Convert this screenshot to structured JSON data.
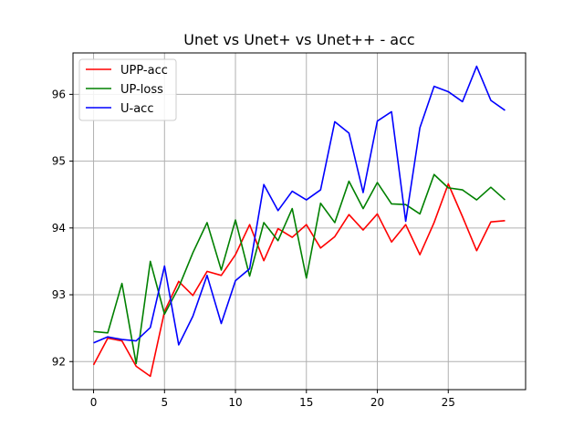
{
  "chart_data": {
    "type": "line",
    "title": "Unet vs Unet+ vs Unet++ - acc",
    "xlabel": "",
    "ylabel": "",
    "x": [
      0,
      1,
      2,
      3,
      4,
      5,
      6,
      7,
      8,
      9,
      10,
      11,
      12,
      13,
      14,
      15,
      16,
      17,
      18,
      19,
      20,
      21,
      22,
      23,
      24,
      25,
      26,
      27,
      28,
      29
    ],
    "xlim": [
      -1.45,
      30.45
    ],
    "ylim": [
      91.58,
      96.62
    ],
    "xticks": [
      0,
      5,
      10,
      15,
      20,
      25
    ],
    "yticks": [
      92,
      93,
      94,
      95,
      96
    ],
    "grid": true,
    "legend_position": "top-left",
    "series": [
      {
        "name": "UPP-acc",
        "color": "#ff0000",
        "values": [
          91.95,
          92.35,
          92.31,
          91.93,
          91.78,
          92.75,
          93.2,
          92.99,
          93.35,
          93.29,
          93.6,
          94.05,
          93.51,
          93.99,
          93.86,
          94.05,
          93.7,
          93.87,
          94.2,
          93.97,
          94.21,
          93.79,
          94.05,
          93.6,
          94.08,
          94.66,
          94.17,
          93.66,
          94.09,
          94.11
        ]
      },
      {
        "name": "UP-loss",
        "color": "#008000",
        "values": [
          92.45,
          92.43,
          93.17,
          91.97,
          93.5,
          92.71,
          93.11,
          93.63,
          94.08,
          93.37,
          94.12,
          93.28,
          94.08,
          93.81,
          94.29,
          93.25,
          94.37,
          94.08,
          94.7,
          94.29,
          94.68,
          94.36,
          94.35,
          94.21,
          94.8,
          94.6,
          94.57,
          94.42,
          94.61,
          94.42
        ]
      },
      {
        "name": "U-acc",
        "color": "#0000ff",
        "values": [
          92.28,
          92.37,
          92.33,
          92.31,
          92.51,
          93.43,
          92.25,
          92.68,
          93.29,
          92.57,
          93.21,
          93.39,
          94.65,
          94.26,
          94.55,
          94.42,
          94.57,
          95.59,
          95.42,
          94.53,
          95.6,
          95.74,
          94.1,
          95.5,
          96.12,
          96.04,
          95.89,
          96.42,
          95.91,
          95.76
        ]
      }
    ]
  }
}
